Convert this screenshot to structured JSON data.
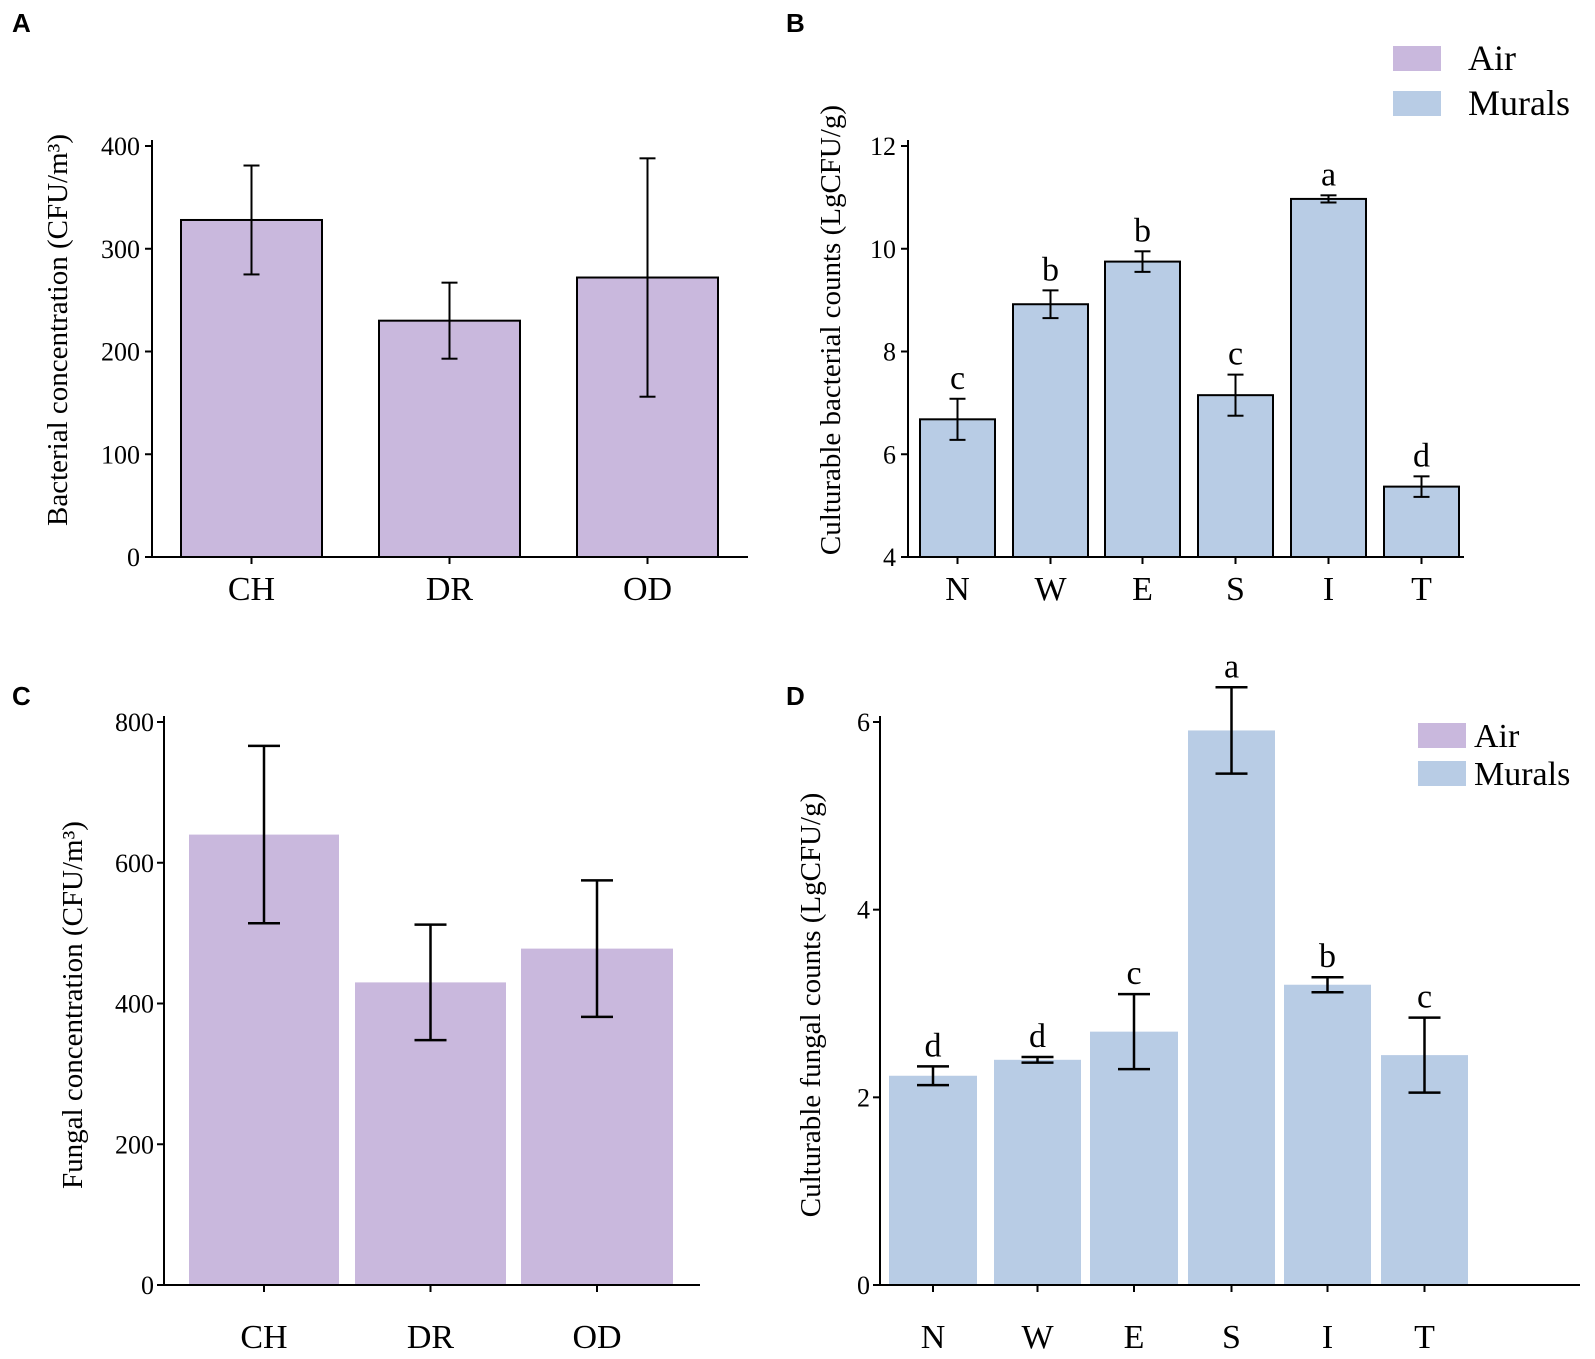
{
  "colors": {
    "air": "#c9b8dd",
    "murals": "#b8cce5",
    "axis": "#000000"
  },
  "legend": {
    "air": "Air",
    "murals": "Murals"
  },
  "chart_data": [
    {
      "panel": "A",
      "type": "bar",
      "ylabel": "Bacterial concentration (CFU/m³)",
      "categories": [
        "CH",
        "DR",
        "OD"
      ],
      "values": [
        328,
        230,
        272
      ],
      "errors": [
        53,
        37,
        116
      ],
      "ylim": [
        0,
        400
      ],
      "yticks": [
        0,
        100,
        200,
        300,
        400
      ],
      "series": "Air"
    },
    {
      "panel": "B",
      "type": "bar",
      "ylabel": "Culturable bacterial counts (LgCFU/g)",
      "categories": [
        "N",
        "W",
        "E",
        "S",
        "I",
        "T"
      ],
      "values": [
        6.68,
        8.92,
        9.75,
        7.15,
        10.97,
        5.37
      ],
      "errors": [
        0.4,
        0.27,
        0.2,
        0.4,
        0.07,
        0.2
      ],
      "significance": [
        "c",
        "b",
        "b",
        "c",
        "a",
        "d"
      ],
      "ylim": [
        4,
        12
      ],
      "yticks": [
        4,
        6,
        8,
        10,
        12
      ],
      "series": "Murals",
      "legend": "top-right"
    },
    {
      "panel": "C",
      "type": "bar",
      "ylabel": "Fungal concentration (CFU/m³)",
      "categories": [
        "CH",
        "DR",
        "OD"
      ],
      "values": [
        640,
        430,
        478
      ],
      "errors": [
        126,
        82,
        97
      ],
      "ylim": [
        0,
        800
      ],
      "yticks": [
        0,
        200,
        400,
        600,
        800
      ],
      "series": "Air"
    },
    {
      "panel": "D",
      "type": "bar",
      "ylabel": "Culturable fungal counts (LgCFU/g)",
      "categories": [
        "N",
        "W",
        "E",
        "S",
        "I",
        "T"
      ],
      "values": [
        2.23,
        2.4,
        2.7,
        5.91,
        3.2,
        2.45
      ],
      "errors": [
        0.1,
        0.03,
        0.4,
        0.46,
        0.08,
        0.4
      ],
      "significance": [
        "d",
        "d",
        "c",
        "a",
        "b",
        "c"
      ],
      "ylim": [
        0,
        6.6
      ],
      "yticks": [
        0,
        2,
        4,
        6
      ],
      "series": "Murals",
      "legend": "top-right"
    }
  ]
}
